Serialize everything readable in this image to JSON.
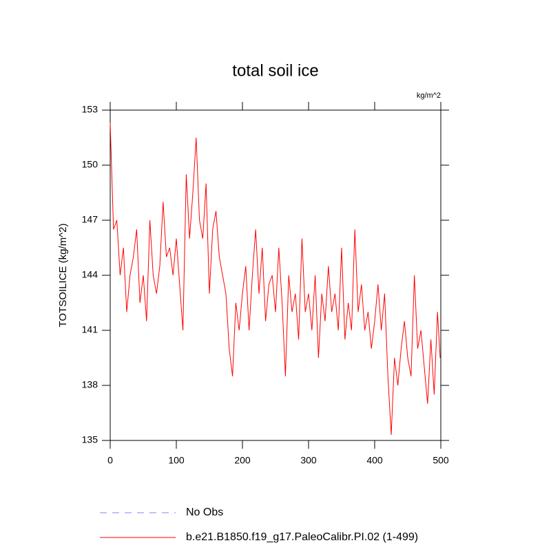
{
  "chart_data": {
    "type": "line",
    "title": "total soil ice",
    "units": "kg/m^2",
    "ylabel": "TOTSOILICE  (kg/m^2)",
    "x": [
      0,
      5,
      10,
      15,
      20,
      25,
      30,
      35,
      40,
      45,
      50,
      55,
      60,
      65,
      70,
      75,
      80,
      85,
      90,
      95,
      100,
      105,
      110,
      115,
      120,
      125,
      130,
      135,
      140,
      145,
      150,
      155,
      160,
      165,
      170,
      175,
      180,
      185,
      190,
      195,
      200,
      205,
      210,
      215,
      220,
      225,
      230,
      235,
      240,
      245,
      250,
      255,
      260,
      265,
      270,
      275,
      280,
      285,
      290,
      295,
      300,
      305,
      310,
      315,
      320,
      325,
      330,
      335,
      340,
      345,
      350,
      355,
      360,
      365,
      370,
      375,
      380,
      385,
      390,
      395,
      400,
      405,
      410,
      415,
      420,
      425,
      430,
      435,
      440,
      445,
      450,
      455,
      460,
      465,
      470,
      475,
      480,
      485,
      490,
      495,
      499
    ],
    "series": [
      {
        "name": "b.e21.B1850.f19_g17.PaleoCalibr.PI.02 (1-499)",
        "color": "#ff0000",
        "values": [
          152.3,
          146.5,
          147,
          144,
          145.5,
          142,
          144,
          145,
          146.5,
          142.5,
          144,
          141.5,
          147,
          144,
          143,
          144.5,
          148,
          145,
          145.5,
          144,
          146,
          143.5,
          141,
          149.5,
          146,
          148.5,
          151.5,
          147,
          146,
          149,
          143,
          146.5,
          147.5,
          145,
          144,
          143,
          140,
          138.5,
          142.5,
          141,
          143,
          144.5,
          141,
          144,
          146.5,
          143,
          145.5,
          141.5,
          143.5,
          144,
          142,
          145.5,
          142.5,
          138.5,
          144,
          142,
          143,
          140.5,
          146,
          142,
          143,
          141,
          144,
          139.5,
          143,
          141.5,
          144.5,
          142,
          143,
          141,
          145.5,
          140.5,
          142.5,
          141,
          146.5,
          142,
          143.5,
          141,
          142,
          140,
          141.5,
          143.5,
          141,
          143,
          138.5,
          135.3,
          139.5,
          138,
          140,
          141.5,
          139.5,
          138.5,
          144,
          140,
          141,
          139,
          137,
          140.5,
          137.5,
          142,
          139.5
        ]
      }
    ],
    "legend": [
      {
        "label": "No Obs",
        "color": "#8080ff",
        "dash": "dashed"
      },
      {
        "label": "b.e21.B1850.f19_g17.PaleoCalibr.PI.02 (1-499)",
        "color": "#ff0000",
        "dash": "solid"
      }
    ],
    "xlim": [
      0,
      500
    ],
    "xticks": [
      0,
      100,
      200,
      300,
      400,
      500
    ],
    "ylim": [
      135,
      153
    ],
    "yticks": [
      135,
      138,
      141,
      144,
      147,
      150,
      153
    ]
  }
}
